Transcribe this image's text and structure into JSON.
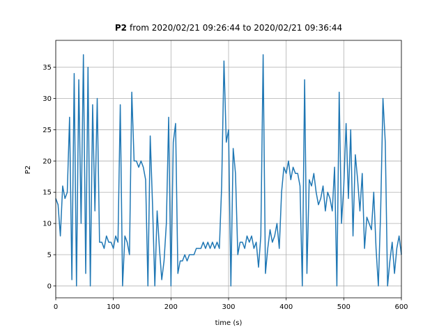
{
  "chart_data": {
    "type": "line",
    "title": {
      "bold": "P2",
      "rest": "from 2020/02/21 09:26:44 to 2020/02/21 09:36:44"
    },
    "xlabel": "time (s)",
    "ylabel": "P2",
    "xlim": [
      0,
      600
    ],
    "ylim": [
      -1.9,
      39.3
    ],
    "xticks": [
      0,
      100,
      200,
      300,
      400,
      500,
      600
    ],
    "yticks": [
      0,
      5,
      10,
      15,
      20,
      25,
      30,
      35
    ],
    "grid": true,
    "x": [
      0,
      4,
      8,
      12,
      16,
      20,
      24,
      28,
      32,
      36,
      40,
      44,
      48,
      52,
      56,
      60,
      64,
      68,
      72,
      76,
      80,
      84,
      88,
      92,
      96,
      100,
      104,
      108,
      112,
      116,
      120,
      124,
      128,
      132,
      136,
      140,
      144,
      148,
      152,
      156,
      160,
      164,
      168,
      172,
      176,
      180,
      184,
      188,
      192,
      196,
      200,
      204,
      208,
      212,
      216,
      220,
      224,
      228,
      232,
      236,
      240,
      244,
      248,
      252,
      256,
      260,
      264,
      268,
      272,
      276,
      280,
      284,
      288,
      292,
      296,
      300,
      304,
      308,
      312,
      316,
      320,
      324,
      328,
      332,
      336,
      340,
      344,
      348,
      352,
      356,
      360,
      364,
      368,
      372,
      376,
      380,
      384,
      388,
      392,
      396,
      400,
      404,
      408,
      412,
      416,
      420,
      424,
      428,
      432,
      436,
      440,
      444,
      448,
      452,
      456,
      460,
      464,
      468,
      472,
      476,
      480,
      484,
      488,
      492,
      496,
      500,
      504,
      508,
      512,
      516,
      520,
      524,
      528,
      532,
      536,
      540,
      544,
      548,
      552,
      556,
      560,
      564,
      568,
      572,
      576,
      580,
      584,
      588,
      592,
      596,
      600
    ],
    "series": [
      {
        "name": "P2",
        "color": "#1f77b4",
        "values": [
          14,
          13,
          8,
          16,
          14,
          15,
          27,
          1,
          34,
          0,
          33,
          10,
          37,
          2,
          35,
          0,
          29,
          12,
          30,
          7,
          7,
          6,
          8,
          7,
          7,
          6,
          8,
          7,
          29,
          0,
          8,
          7,
          5,
          31,
          20,
          20,
          19,
          20,
          19,
          17,
          0,
          24,
          13,
          0,
          12,
          6,
          1,
          4,
          10,
          27,
          0,
          23,
          26,
          2,
          4,
          4,
          5,
          4,
          5,
          5,
          5,
          6,
          6,
          6,
          7,
          6,
          7,
          6,
          7,
          6,
          7,
          6,
          16,
          36,
          23,
          25,
          0,
          22,
          18,
          5,
          7,
          7,
          6,
          8,
          7,
          8,
          6,
          7,
          3,
          8,
          37,
          2,
          6,
          9,
          7,
          8,
          10,
          6,
          15,
          19,
          18,
          20,
          17,
          19,
          18,
          18,
          16,
          0,
          33,
          2,
          17,
          16,
          18,
          15,
          13,
          14,
          16,
          12,
          15,
          14,
          12,
          19,
          0,
          31,
          10,
          16,
          26,
          14,
          25,
          8,
          21,
          17,
          12,
          18,
          6,
          11,
          10,
          9,
          15,
          6,
          0,
          12,
          30,
          23,
          0,
          4,
          7,
          2,
          6,
          8,
          5
        ]
      }
    ]
  }
}
